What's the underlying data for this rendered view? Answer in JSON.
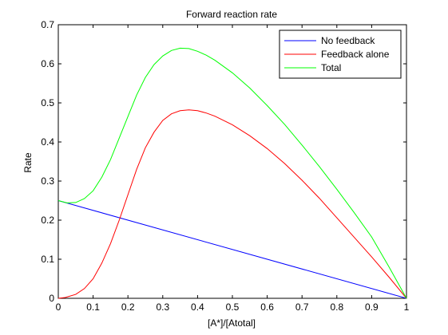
{
  "chart_data": {
    "type": "line",
    "title": "Forward reaction rate",
    "xlabel": "[A*]/[Atotal]",
    "ylabel": "Rate",
    "xlim": [
      0,
      1
    ],
    "ylim": [
      0,
      0.7
    ],
    "xticks": [
      0,
      0.1,
      0.2,
      0.3,
      0.4,
      0.5,
      0.6,
      0.7,
      0.8,
      0.9,
      1
    ],
    "xtick_labels": [
      "0",
      "0.1",
      "0.2",
      "0.3",
      "0.4",
      "0.5",
      "0.6",
      "0.7",
      "0.8",
      "0.9",
      "1"
    ],
    "yticks": [
      0,
      0.1,
      0.2,
      0.3,
      0.4,
      0.5,
      0.6,
      0.7
    ],
    "ytick_labels": [
      "0",
      "0.1",
      "0.2",
      "0.3",
      "0.4",
      "0.5",
      "0.6",
      "0.7"
    ],
    "grid": false,
    "legend_position": "top-right",
    "series": [
      {
        "name": "No feedback",
        "color": "#0000ff",
        "x": [
          0,
          1
        ],
        "y": [
          0.25,
          0
        ]
      },
      {
        "name": "Feedback alone",
        "color": "#ff0000",
        "x": [
          0,
          0.02,
          0.05,
          0.075,
          0.1,
          0.125,
          0.15,
          0.175,
          0.2,
          0.225,
          0.25,
          0.275,
          0.3,
          0.325,
          0.35,
          0.375,
          0.4,
          0.425,
          0.45,
          0.5,
          0.55,
          0.6,
          0.65,
          0.7,
          0.75,
          0.8,
          0.85,
          0.9,
          0.95,
          1
        ],
        "y": [
          0,
          0.002,
          0.01,
          0.025,
          0.05,
          0.09,
          0.14,
          0.2,
          0.265,
          0.33,
          0.385,
          0.425,
          0.455,
          0.472,
          0.48,
          0.482,
          0.48,
          0.474,
          0.466,
          0.444,
          0.416,
          0.383,
          0.345,
          0.302,
          0.256,
          0.206,
          0.156,
          0.106,
          0.054,
          0
        ]
      },
      {
        "name": "Total",
        "color": "#00ff00",
        "x": [
          0,
          0.025,
          0.05,
          0.075,
          0.1,
          0.125,
          0.15,
          0.175,
          0.2,
          0.225,
          0.25,
          0.275,
          0.3,
          0.325,
          0.35,
          0.375,
          0.4,
          0.425,
          0.45,
          0.5,
          0.55,
          0.6,
          0.65,
          0.7,
          0.75,
          0.8,
          0.85,
          0.9,
          0.95,
          1
        ],
        "y": [
          0.25,
          0.244,
          0.245,
          0.255,
          0.275,
          0.31,
          0.355,
          0.41,
          0.465,
          0.52,
          0.565,
          0.598,
          0.62,
          0.634,
          0.64,
          0.639,
          0.632,
          0.622,
          0.609,
          0.577,
          0.538,
          0.493,
          0.445,
          0.392,
          0.337,
          0.279,
          0.219,
          0.157,
          0.08,
          0
        ]
      }
    ]
  }
}
